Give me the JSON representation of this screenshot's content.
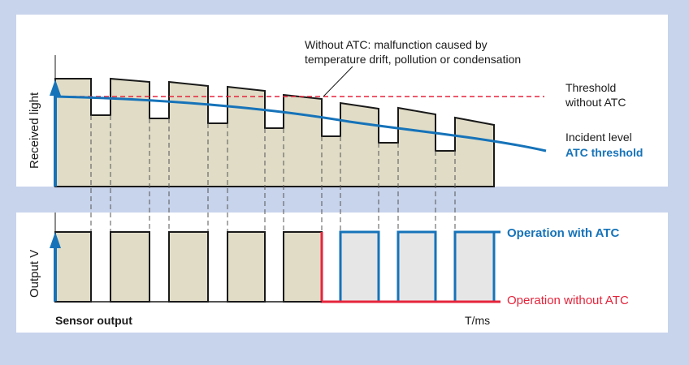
{
  "panels": {
    "top": {
      "y_axis_label": "Received light",
      "annotation": {
        "line1": "Without ATC: malfunction caused by",
        "line2": "temperature drift, pollution or condensation"
      },
      "threshold_label": {
        "line1": "Threshold",
        "line2": "without ATC"
      },
      "incident_label": "Incident level",
      "atc_label": "ATC threshold"
    },
    "bottom": {
      "y_axis_label": "Output V",
      "x_left_label": "Sensor output",
      "x_right_label": "T/ms",
      "with_atc_label": "Operation with ATC",
      "without_atc_label": "Operation without ATC"
    }
  },
  "colors": {
    "background": "#c8d4ec",
    "panel": "#ffffff",
    "fill": "#e0dcc6",
    "grey_fill": "#e6e6e6",
    "stroke": "#1a1a1a",
    "blue": "#1673b9",
    "red": "#e5243b"
  },
  "signal": {
    "pulse_count": 8,
    "pulses_with_atc_only": [
      5,
      6,
      7
    ]
  }
}
